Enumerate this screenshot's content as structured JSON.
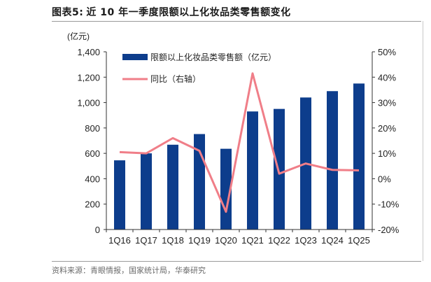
{
  "figure": {
    "label": "图表5:",
    "title": "近 10 年一季度限额以上化妆品类零售额变化",
    "source": "资料来源：青眼情报，国家统计局，华泰研究"
  },
  "chart_data": {
    "type": "bar",
    "categories": [
      "1Q16",
      "1Q17",
      "1Q18",
      "1Q19",
      "1Q20",
      "1Q21",
      "1Q22",
      "1Q23",
      "1Q24",
      "1Q25"
    ],
    "y_unit_label": "(亿元)",
    "ylim": [
      0,
      1400
    ],
    "yticks": [
      "0",
      "200",
      "400",
      "600",
      "800",
      "1,000",
      "1,200",
      "1,400"
    ],
    "y2lim": [
      -20,
      50
    ],
    "y2ticks": [
      "-20%",
      "-10%",
      "0%",
      "10%",
      "20%",
      "30%",
      "40%",
      "50%"
    ],
    "grid": false,
    "legend_position": "top-left",
    "series": [
      {
        "name": "限额以上化妆品类零售额（亿元）",
        "type": "bar",
        "axis": "left",
        "color": "#0d3d8c",
        "values": [
          545,
          600,
          668,
          752,
          636,
          930,
          950,
          1040,
          1090,
          1150
        ]
      },
      {
        "name": "同比（右轴）",
        "type": "line",
        "axis": "right",
        "color": "#f07e88",
        "values": [
          10.5,
          10.0,
          16.0,
          11.0,
          -13.0,
          41.5,
          2.0,
          6.0,
          3.5,
          3.3
        ]
      }
    ]
  }
}
